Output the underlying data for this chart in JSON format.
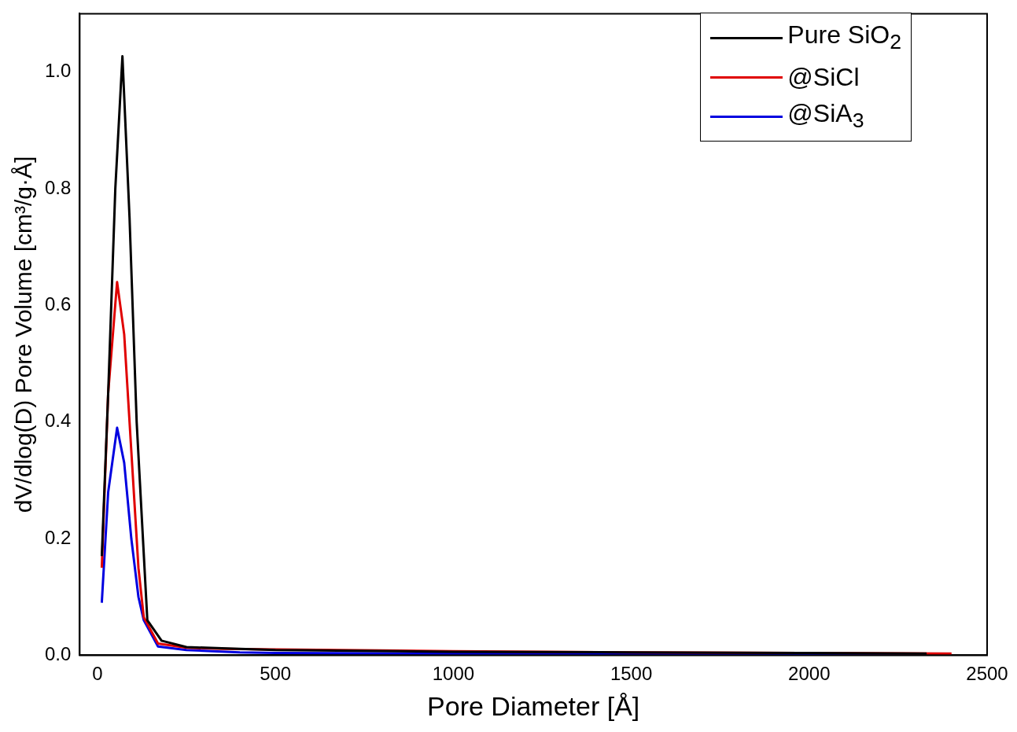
{
  "chart_data": {
    "type": "line",
    "xlabel": "Pore Diameter [Å]",
    "ylabel": "dV/dlog(D) Pore Volume [cm³/g·Å]",
    "xlim": [
      -50,
      2500
    ],
    "xticks": [
      0,
      500,
      1000,
      1500,
      2000,
      2500
    ],
    "ylim": [
      0,
      1.1
    ],
    "yticks": [
      {
        "value": 0,
        "label": "0.0"
      },
      0.2,
      0.4,
      0.6,
      0.8,
      {
        "value": 1,
        "label": "1.0"
      }
    ],
    "grid": false,
    "legend": "top right",
    "marker": "none",
    "line_style": "solid",
    "series": [
      {
        "name": "Pure SiO$_{2}$",
        "color": "#000000",
        "x": [
          12,
          30,
          50,
          70,
          90,
          110,
          140,
          180,
          250,
          350,
          500,
          1000,
          1500,
          2000,
          2330
        ],
        "values": [
          0.17,
          0.45,
          0.8,
          1.027,
          0.75,
          0.4,
          0.06,
          0.025,
          0.014,
          0.012,
          0.009,
          0.006,
          0.005,
          0.004,
          0.003
        ]
      },
      {
        "name": "@SiCl",
        "color": "#e00000",
        "x": [
          12,
          30,
          55,
          75,
          95,
          115,
          130,
          170,
          250,
          350,
          500,
          1000,
          1500,
          2000,
          2400
        ],
        "values": [
          0.15,
          0.45,
          0.64,
          0.55,
          0.35,
          0.15,
          0.065,
          0.02,
          0.013,
          0.011,
          0.01,
          0.007,
          0.005,
          0.004,
          0.003
        ]
      },
      {
        "name": "@SiA$_{3}$",
        "color": "#0000e0",
        "x": [
          12,
          30,
          55,
          75,
          95,
          115,
          130,
          170,
          250,
          400,
          500,
          1000,
          1500,
          2000,
          2330
        ],
        "values": [
          0.09,
          0.28,
          0.39,
          0.33,
          0.2,
          0.1,
          0.06,
          0.015,
          0.009,
          0.005,
          0.004,
          0.003,
          0.003,
          0.002,
          0.002
        ]
      }
    ]
  }
}
